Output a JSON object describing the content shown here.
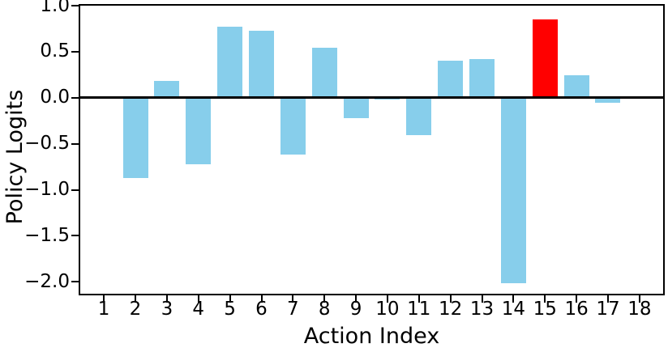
{
  "chart_data": {
    "type": "bar",
    "title": "",
    "xlabel": "Action Index",
    "ylabel": "Policy Logits",
    "categories": [
      "1",
      "2",
      "3",
      "4",
      "5",
      "6",
      "7",
      "8",
      "9",
      "10",
      "11",
      "12",
      "13",
      "14",
      "15",
      "16",
      "17",
      "18"
    ],
    "values": [
      0,
      -0.87,
      0.18,
      -0.72,
      0.77,
      0.73,
      -0.62,
      0.54,
      -0.22,
      -0.02,
      -0.41,
      0.4,
      0.42,
      -2.02,
      0.85,
      0.24,
      -0.06,
      0
    ],
    "highlight_category": "15",
    "default_color": "#87CEEB",
    "highlight_color": "#FF0000",
    "axis_color": "#000000",
    "background_color": "#FFFFFF",
    "yticks": [
      {
        "v": 1.0,
        "label": "1.0"
      },
      {
        "v": 0.5,
        "label": "0.5"
      },
      {
        "v": 0.0,
        "label": "0.0"
      },
      {
        "v": -0.5,
        "label": "−0.5"
      },
      {
        "v": -1.0,
        "label": "−1.0"
      },
      {
        "v": -1.5,
        "label": "−1.5"
      },
      {
        "v": -2.0,
        "label": "−2.0"
      }
    ],
    "ylim": [
      -2.13,
      1.0
    ],
    "xlim": [
      0.25,
      18.75
    ],
    "bar_width_units": 0.8,
    "grid": false,
    "zero_line": true,
    "legend": null
  }
}
